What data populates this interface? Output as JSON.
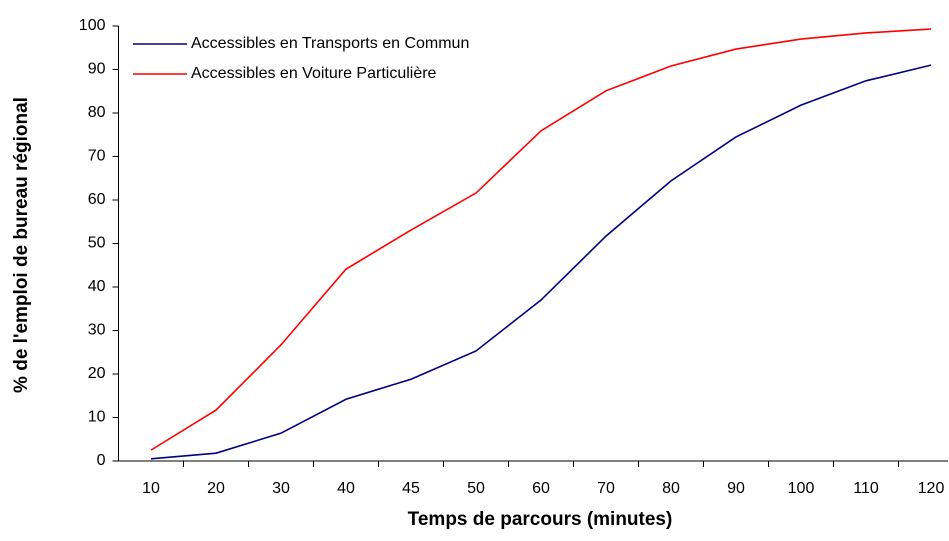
{
  "chart_data": {
    "type": "line",
    "x_label": "Temps de parcours (minutes)",
    "y_label": "% de l'emploi de bureau régional",
    "categories": [
      "10",
      "20",
      "30",
      "40",
      "45",
      "50",
      "60",
      "70",
      "80",
      "90",
      "100",
      "110",
      "120"
    ],
    "series": [
      {
        "name": "Accessibles en Transports en Commun",
        "color": "#000080",
        "values": [
          0.5,
          1.8,
          6.4,
          14.2,
          18.8,
          25.3,
          37,
          51.7,
          64.4,
          74.5,
          81.8,
          87.4,
          91
        ]
      },
      {
        "name": "Accessibles en Voiture Particulière",
        "color": "#ff0000",
        "values": [
          2.5,
          11.7,
          26.7,
          44.1,
          53.1,
          61.6,
          75.9,
          85.1,
          90.8,
          94.7,
          97,
          98.4,
          99.3
        ]
      }
    ],
    "ylim": [
      0,
      100
    ],
    "yticks": [
      0,
      10,
      20,
      30,
      40,
      50,
      60,
      70,
      80,
      90,
      100
    ],
    "grid": false,
    "legend": "top-left"
  }
}
